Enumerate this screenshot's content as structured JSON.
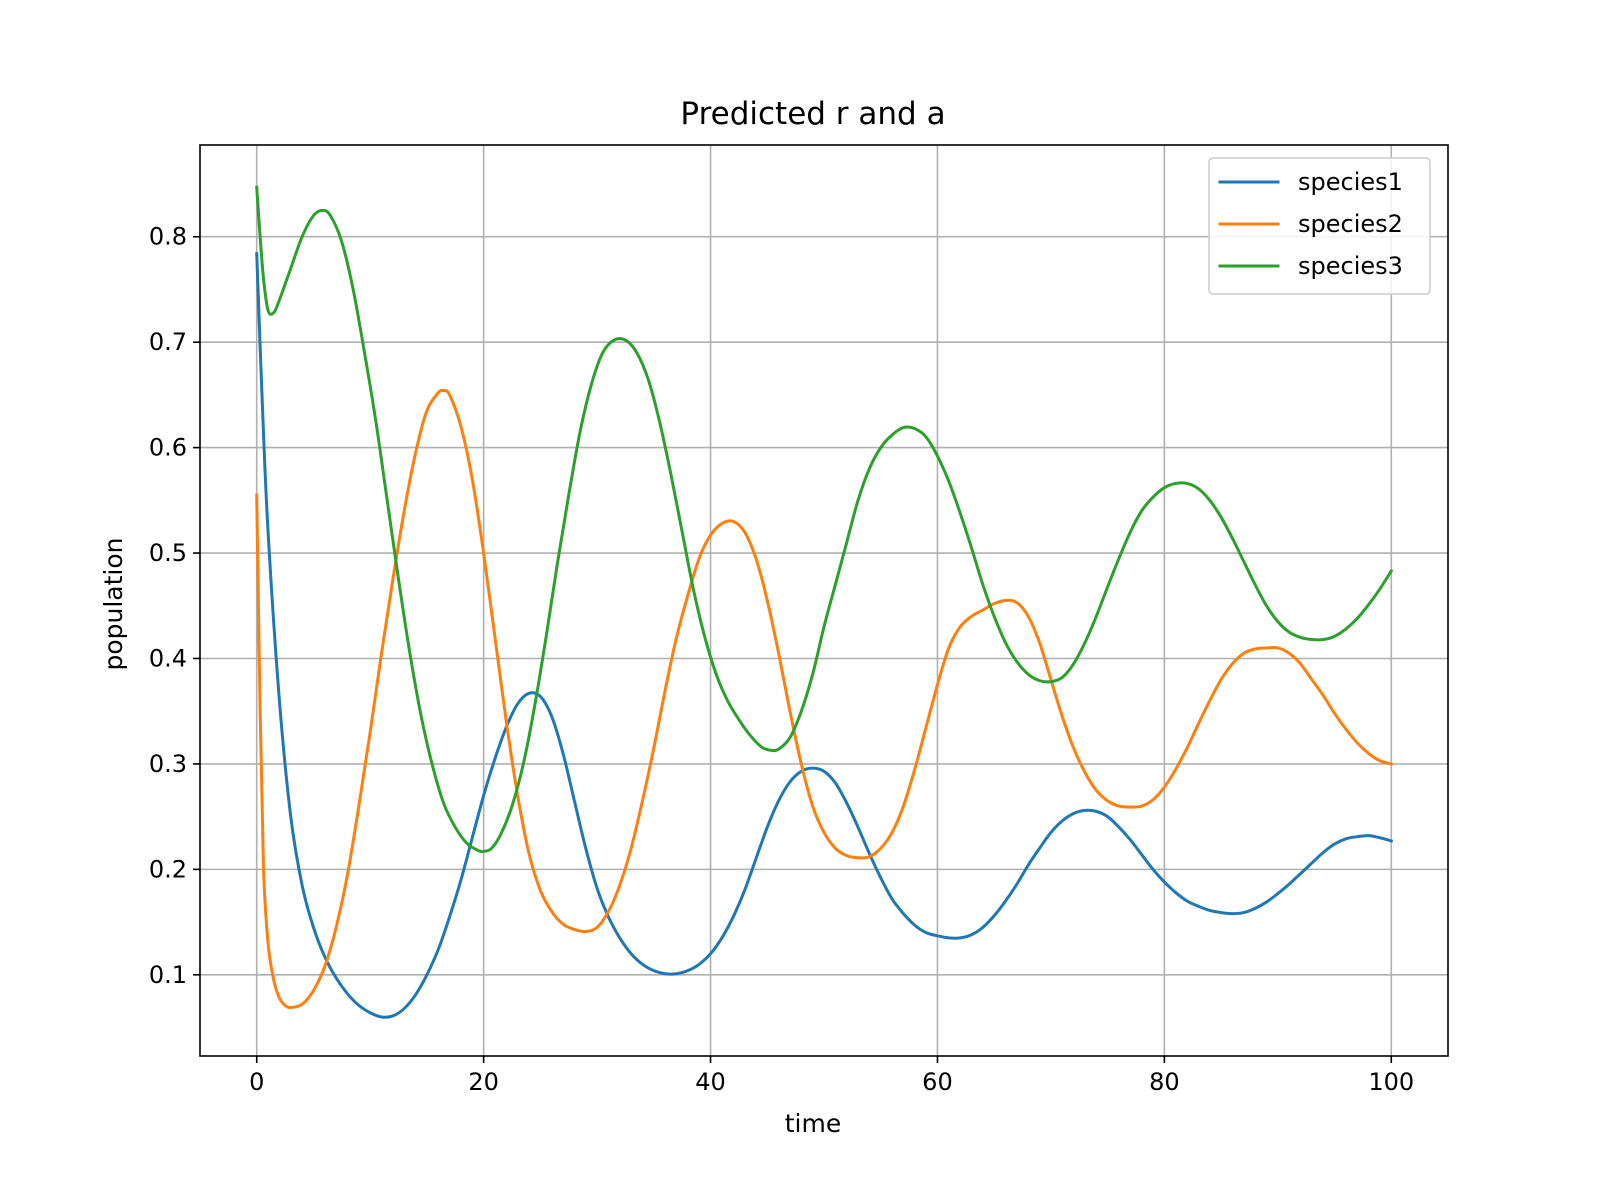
{
  "chart_data": {
    "type": "line",
    "title": "Predicted r and a",
    "xlabel": "time",
    "ylabel": "population",
    "xlim": [
      -5,
      105
    ],
    "ylim": [
      0.023,
      0.887
    ],
    "xticks": [
      0,
      20,
      40,
      60,
      80,
      100
    ],
    "yticks": [
      0.1,
      0.2,
      0.3,
      0.4,
      0.5,
      0.6,
      0.7,
      0.8
    ],
    "xtick_labels": [
      "0",
      "20",
      "40",
      "60",
      "80",
      "100"
    ],
    "ytick_labels": [
      "0.1",
      "0.2",
      "0.3",
      "0.4",
      "0.5",
      "0.6",
      "0.7",
      "0.8"
    ],
    "grid": true,
    "legend_position": "top-right",
    "series": [
      {
        "name": "species1",
        "color": "#1f77b4",
        "points": [
          [
            0,
            0.784
          ],
          [
            0.5,
            0.64
          ],
          [
            1,
            0.52
          ],
          [
            2,
            0.36
          ],
          [
            3,
            0.25
          ],
          [
            4,
            0.185
          ],
          [
            5,
            0.145
          ],
          [
            6,
            0.117
          ],
          [
            7,
            0.097
          ],
          [
            8,
            0.082
          ],
          [
            9,
            0.071
          ],
          [
            10,
            0.064
          ],
          [
            11,
            0.06
          ],
          [
            12,
            0.061
          ],
          [
            13,
            0.068
          ],
          [
            14,
            0.081
          ],
          [
            15,
            0.1
          ],
          [
            16,
            0.124
          ],
          [
            17,
            0.155
          ],
          [
            18,
            0.19
          ],
          [
            19,
            0.23
          ],
          [
            20,
            0.27
          ],
          [
            21,
            0.305
          ],
          [
            22,
            0.335
          ],
          [
            23,
            0.357
          ],
          [
            24,
            0.367
          ],
          [
            25,
            0.364
          ],
          [
            26,
            0.345
          ],
          [
            27,
            0.31
          ],
          [
            28,
            0.265
          ],
          [
            29,
            0.22
          ],
          [
            30,
            0.182
          ],
          [
            31,
            0.155
          ],
          [
            32,
            0.135
          ],
          [
            33,
            0.12
          ],
          [
            34,
            0.11
          ],
          [
            35,
            0.104
          ],
          [
            36,
            0.101
          ],
          [
            37,
            0.101
          ],
          [
            38,
            0.104
          ],
          [
            39,
            0.11
          ],
          [
            40,
            0.12
          ],
          [
            41,
            0.135
          ],
          [
            42,
            0.155
          ],
          [
            43,
            0.18
          ],
          [
            44,
            0.21
          ],
          [
            45,
            0.24
          ],
          [
            46,
            0.265
          ],
          [
            47,
            0.283
          ],
          [
            48,
            0.293
          ],
          [
            49,
            0.296
          ],
          [
            50,
            0.293
          ],
          [
            51,
            0.282
          ],
          [
            52,
            0.263
          ],
          [
            53,
            0.24
          ],
          [
            54,
            0.215
          ],
          [
            55,
            0.192
          ],
          [
            56,
            0.172
          ],
          [
            57,
            0.158
          ],
          [
            58,
            0.147
          ],
          [
            59,
            0.14
          ],
          [
            60,
            0.137
          ],
          [
            61,
            0.135
          ],
          [
            62,
            0.135
          ],
          [
            63,
            0.138
          ],
          [
            64,
            0.145
          ],
          [
            65,
            0.156
          ],
          [
            66,
            0.17
          ],
          [
            67,
            0.186
          ],
          [
            68,
            0.204
          ],
          [
            69,
            0.22
          ],
          [
            70,
            0.235
          ],
          [
            71,
            0.246
          ],
          [
            72,
            0.253
          ],
          [
            73,
            0.256
          ],
          [
            74,
            0.255
          ],
          [
            75,
            0.25
          ],
          [
            76,
            0.24
          ],
          [
            77,
            0.228
          ],
          [
            78,
            0.214
          ],
          [
            79,
            0.2
          ],
          [
            80,
            0.188
          ],
          [
            81,
            0.178
          ],
          [
            82,
            0.17
          ],
          [
            83,
            0.165
          ],
          [
            84,
            0.161
          ],
          [
            85,
            0.159
          ],
          [
            86,
            0.158
          ],
          [
            87,
            0.159
          ],
          [
            88,
            0.163
          ],
          [
            89,
            0.169
          ],
          [
            90,
            0.177
          ],
          [
            91,
            0.186
          ],
          [
            92,
            0.196
          ],
          [
            93,
            0.206
          ],
          [
            94,
            0.216
          ],
          [
            95,
            0.224
          ],
          [
            96,
            0.229
          ],
          [
            97,
            0.231
          ],
          [
            98,
            0.232
          ],
          [
            99,
            0.23
          ],
          [
            100,
            0.227
          ]
        ]
      },
      {
        "name": "species2",
        "color": "#ff7f0e",
        "points": [
          [
            0,
            0.555
          ],
          [
            0.3,
            0.35
          ],
          [
            0.6,
            0.2
          ],
          [
            1,
            0.13
          ],
          [
            1.5,
            0.095
          ],
          [
            2,
            0.078
          ],
          [
            2.5,
            0.071
          ],
          [
            3,
            0.069
          ],
          [
            4,
            0.072
          ],
          [
            5,
            0.085
          ],
          [
            6,
            0.108
          ],
          [
            7,
            0.145
          ],
          [
            8,
            0.195
          ],
          [
            9,
            0.26
          ],
          [
            10,
            0.33
          ],
          [
            11,
            0.405
          ],
          [
            12,
            0.475
          ],
          [
            13,
            0.54
          ],
          [
            14,
            0.595
          ],
          [
            15,
            0.635
          ],
          [
            16,
            0.652
          ],
          [
            16.5,
            0.654
          ],
          [
            17,
            0.65
          ],
          [
            18,
            0.62
          ],
          [
            19,
            0.57
          ],
          [
            20,
            0.5
          ],
          [
            21,
            0.42
          ],
          [
            22,
            0.34
          ],
          [
            23,
            0.27
          ],
          [
            24,
            0.215
          ],
          [
            25,
            0.18
          ],
          [
            26,
            0.16
          ],
          [
            27,
            0.148
          ],
          [
            28,
            0.143
          ],
          [
            29,
            0.141
          ],
          [
            30,
            0.145
          ],
          [
            31,
            0.16
          ],
          [
            32,
            0.185
          ],
          [
            33,
            0.22
          ],
          [
            34,
            0.265
          ],
          [
            35,
            0.315
          ],
          [
            36,
            0.37
          ],
          [
            37,
            0.42
          ],
          [
            38,
            0.46
          ],
          [
            39,
            0.495
          ],
          [
            40,
            0.517
          ],
          [
            41,
            0.528
          ],
          [
            42,
            0.53
          ],
          [
            43,
            0.52
          ],
          [
            44,
            0.495
          ],
          [
            45,
            0.455
          ],
          [
            46,
            0.405
          ],
          [
            47,
            0.35
          ],
          [
            48,
            0.3
          ],
          [
            49,
            0.26
          ],
          [
            50,
            0.235
          ],
          [
            51,
            0.22
          ],
          [
            52,
            0.213
          ],
          [
            53,
            0.211
          ],
          [
            54,
            0.212
          ],
          [
            55,
            0.22
          ],
          [
            56,
            0.235
          ],
          [
            57,
            0.26
          ],
          [
            58,
            0.295
          ],
          [
            59,
            0.335
          ],
          [
            60,
            0.375
          ],
          [
            61,
            0.41
          ],
          [
            62,
            0.43
          ],
          [
            63,
            0.44
          ],
          [
            64,
            0.446
          ],
          [
            65,
            0.452
          ],
          [
            66,
            0.455
          ],
          [
            67,
            0.453
          ],
          [
            68,
            0.44
          ],
          [
            69,
            0.415
          ],
          [
            70,
            0.38
          ],
          [
            71,
            0.345
          ],
          [
            72,
            0.315
          ],
          [
            73,
            0.292
          ],
          [
            74,
            0.275
          ],
          [
            75,
            0.265
          ],
          [
            76,
            0.26
          ],
          [
            77,
            0.259
          ],
          [
            78,
            0.26
          ],
          [
            79,
            0.266
          ],
          [
            80,
            0.278
          ],
          [
            81,
            0.295
          ],
          [
            82,
            0.315
          ],
          [
            83,
            0.338
          ],
          [
            84,
            0.36
          ],
          [
            85,
            0.38
          ],
          [
            86,
            0.395
          ],
          [
            87,
            0.405
          ],
          [
            88,
            0.409
          ],
          [
            89,
            0.41
          ],
          [
            90,
            0.41
          ],
          [
            91,
            0.405
          ],
          [
            92,
            0.395
          ],
          [
            93,
            0.38
          ],
          [
            94,
            0.365
          ],
          [
            95,
            0.348
          ],
          [
            96,
            0.333
          ],
          [
            97,
            0.32
          ],
          [
            98,
            0.31
          ],
          [
            99,
            0.303
          ],
          [
            100,
            0.3
          ]
        ]
      },
      {
        "name": "species3",
        "color": "#2ca02c",
        "points": [
          [
            0,
            0.847
          ],
          [
            0.3,
            0.8
          ],
          [
            0.6,
            0.76
          ],
          [
            1,
            0.73
          ],
          [
            1.5,
            0.728
          ],
          [
            2,
            0.74
          ],
          [
            3,
            0.77
          ],
          [
            4,
            0.8
          ],
          [
            5,
            0.82
          ],
          [
            5.8,
            0.825
          ],
          [
            6.5,
            0.82
          ],
          [
            7.5,
            0.795
          ],
          [
            8.5,
            0.75
          ],
          [
            9.5,
            0.69
          ],
          [
            10.5,
            0.625
          ],
          [
            11.5,
            0.55
          ],
          [
            12.5,
            0.475
          ],
          [
            13.5,
            0.405
          ],
          [
            14.5,
            0.345
          ],
          [
            15.5,
            0.298
          ],
          [
            16.5,
            0.262
          ],
          [
            17.5,
            0.24
          ],
          [
            18.5,
            0.225
          ],
          [
            19.5,
            0.218
          ],
          [
            20,
            0.217
          ],
          [
            20.7,
            0.22
          ],
          [
            21.5,
            0.233
          ],
          [
            22.5,
            0.26
          ],
          [
            23.5,
            0.3
          ],
          [
            24.5,
            0.355
          ],
          [
            25.5,
            0.42
          ],
          [
            26.5,
            0.49
          ],
          [
            27.5,
            0.555
          ],
          [
            28.5,
            0.615
          ],
          [
            29.5,
            0.66
          ],
          [
            30.5,
            0.69
          ],
          [
            31.5,
            0.702
          ],
          [
            32.5,
            0.702
          ],
          [
            33.5,
            0.69
          ],
          [
            34.5,
            0.665
          ],
          [
            35.5,
            0.625
          ],
          [
            36.5,
            0.575
          ],
          [
            37.5,
            0.52
          ],
          [
            38.5,
            0.465
          ],
          [
            39.5,
            0.42
          ],
          [
            40.5,
            0.385
          ],
          [
            41.5,
            0.36
          ],
          [
            42.5,
            0.342
          ],
          [
            43.5,
            0.327
          ],
          [
            44.5,
            0.316
          ],
          [
            45.3,
            0.313
          ],
          [
            46,
            0.314
          ],
          [
            47,
            0.325
          ],
          [
            48,
            0.35
          ],
          [
            49,
            0.385
          ],
          [
            50,
            0.43
          ],
          [
            51,
            0.47
          ],
          [
            52,
            0.51
          ],
          [
            53,
            0.55
          ],
          [
            54,
            0.58
          ],
          [
            55,
            0.6
          ],
          [
            56,
            0.612
          ],
          [
            57,
            0.619
          ],
          [
            58,
            0.618
          ],
          [
            59,
            0.61
          ],
          [
            60,
            0.592
          ],
          [
            61,
            0.568
          ],
          [
            62,
            0.538
          ],
          [
            63,
            0.505
          ],
          [
            64,
            0.47
          ],
          [
            65,
            0.44
          ],
          [
            66,
            0.415
          ],
          [
            67,
            0.397
          ],
          [
            68,
            0.385
          ],
          [
            69,
            0.379
          ],
          [
            70,
            0.378
          ],
          [
            71,
            0.382
          ],
          [
            72,
            0.395
          ],
          [
            73,
            0.415
          ],
          [
            74,
            0.44
          ],
          [
            75,
            0.468
          ],
          [
            76,
            0.495
          ],
          [
            77,
            0.52
          ],
          [
            78,
            0.54
          ],
          [
            79,
            0.553
          ],
          [
            80,
            0.562
          ],
          [
            81,
            0.566
          ],
          [
            82,
            0.566
          ],
          [
            83,
            0.561
          ],
          [
            84,
            0.55
          ],
          [
            85,
            0.534
          ],
          [
            86,
            0.514
          ],
          [
            87,
            0.492
          ],
          [
            88,
            0.47
          ],
          [
            89,
            0.45
          ],
          [
            90,
            0.435
          ],
          [
            91,
            0.425
          ],
          [
            92,
            0.42
          ],
          [
            93,
            0.418
          ],
          [
            94,
            0.418
          ],
          [
            95,
            0.421
          ],
          [
            96,
            0.428
          ],
          [
            97,
            0.438
          ],
          [
            98,
            0.451
          ],
          [
            99,
            0.466
          ],
          [
            100,
            0.483
          ]
        ]
      }
    ]
  }
}
